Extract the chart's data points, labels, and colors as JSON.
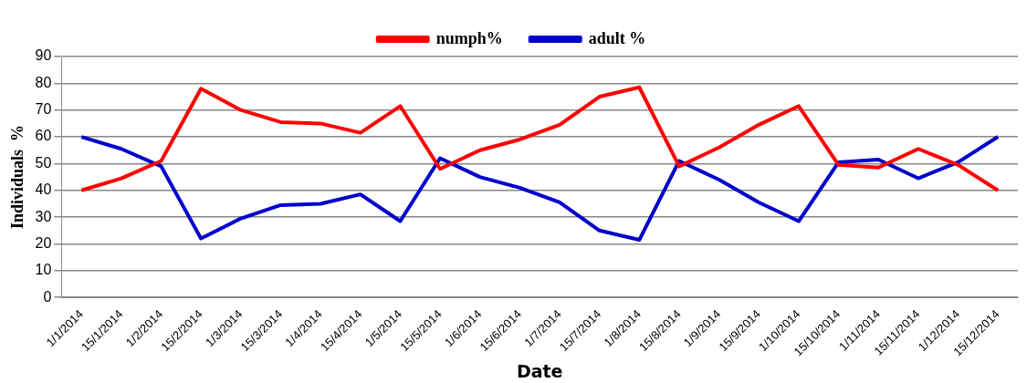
{
  "chart_data": {
    "type": "line",
    "xlabel": "Date",
    "ylabel": "Individuals  %",
    "categories": [
      "1/1/2014",
      "15/1/2014",
      "1/2/2014",
      "15/2/2014",
      "1/3/2014",
      "15/3/2014",
      "1/4/2014",
      "15/4/2014",
      "1/5/2014",
      "15/5/2014",
      "1/6/2014",
      "15/6/2014",
      "1/7/2014",
      "15/7/2014",
      "1/8/2014",
      "15/8/2014",
      "1/9/2014",
      "15/9/2014",
      "1/10/2014",
      "15/10/2014",
      "1/11/2014",
      "15/11/2014",
      "1/12/2014",
      "15/12/2014"
    ],
    "series": [
      {
        "name": "numph%",
        "color": "#ff0000",
        "values": [
          40,
          44.5,
          51,
          78,
          70,
          65.5,
          65,
          61.5,
          71.5,
          48,
          55,
          59,
          64.5,
          75,
          78.5,
          49,
          56,
          64.5,
          71.5,
          49.5,
          48.5,
          55.5,
          49.5,
          40
        ]
      },
      {
        "name": "adult %",
        "color": "#0000cc",
        "values": [
          60,
          55.5,
          49,
          22,
          29.5,
          34.5,
          35,
          38.5,
          28.5,
          52,
          45,
          41,
          35.5,
          25,
          21.5,
          51,
          44,
          35.5,
          28.5,
          50.5,
          51.5,
          44.5,
          50.5,
          60
        ]
      }
    ],
    "ylim": [
      0,
      90
    ],
    "yticks": [
      0,
      10,
      20,
      30,
      40,
      50,
      60,
      70,
      80,
      90
    ],
    "grid": "y",
    "legend": "top",
    "marker": "none",
    "line_style": "solid"
  }
}
